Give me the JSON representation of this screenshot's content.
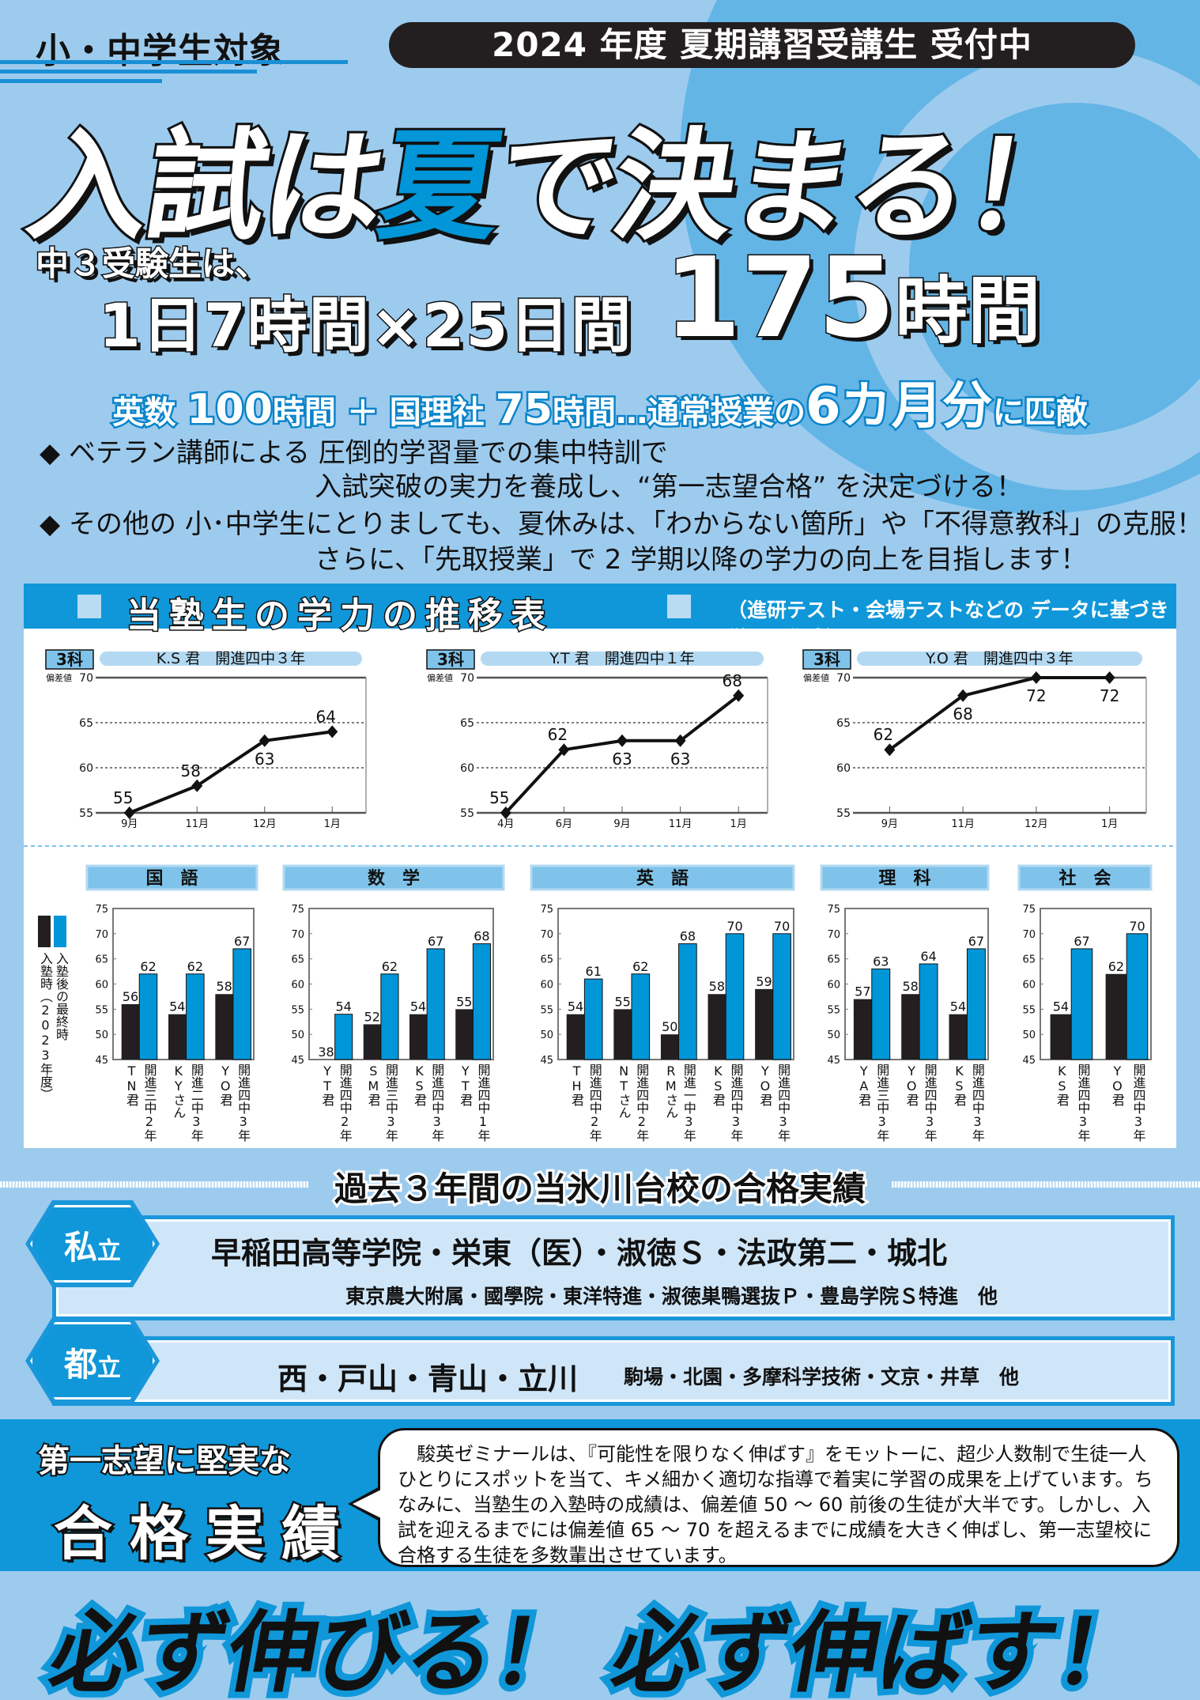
{
  "header": {
    "target": "小・中学生対象",
    "banner": "2024 年度 夏期講習受講生 受付中"
  },
  "headline": {
    "part1": "入試は",
    "highlight": "夏",
    "part2": "で決まる！"
  },
  "hours": {
    "intro": "中３受験生は、",
    "formula": "1日7時間×25日間",
    "total_num": "175",
    "total_unit": "時間"
  },
  "breakdown": {
    "s1": "英数 ",
    "n1": "100",
    "s2": "時間 ＋ 国理社 ",
    "n2": "75",
    "s3": "時間…通常授業の",
    "n3": "6カ月分",
    "s4": "に匹敵"
  },
  "bullets": [
    {
      "mark": "◆",
      "line1": "ベテラン講師による 圧倒的学習量での集中特訓で",
      "line2": "入試突破の実力を養成し、“第一志望合格” を決定づける！"
    },
    {
      "mark": "◆",
      "line1": "その他の 小･中学生にとりましても、夏休みは、「わからない箇所」や「不得意教科」の克服！",
      "line2": "さらに、「先取授業」で 2 学期以降の学力の向上を目指します！"
    }
  ],
  "progress": {
    "title": "当塾生の学力の推移表",
    "note": "（進研テスト・会場テストなどの データに基づき厳正に作成）"
  },
  "colors": {
    "bg": "#9dcbee",
    "accent": "#0f97d9",
    "before_bar": "#231f20",
    "after_bar": "#0096d8"
  },
  "chart_data": [
    {
      "type": "line",
      "tag": "3科",
      "title": "K.S 君　開進四中３年",
      "ylabel": "偏差値",
      "ylim": [
        55,
        70
      ],
      "yticks": [
        55,
        60,
        65,
        70
      ],
      "x": [
        "9月",
        "11月",
        "12月",
        "1月"
      ],
      "values": [
        55,
        58,
        63,
        64
      ]
    },
    {
      "type": "line",
      "tag": "3科",
      "title": "Y.T 君　開進四中１年",
      "ylabel": "偏差値",
      "ylim": [
        55,
        70
      ],
      "yticks": [
        55,
        60,
        65,
        70
      ],
      "x": [
        "4月",
        "6月",
        "9月",
        "11月",
        "1月"
      ],
      "values": [
        55,
        62,
        63,
        63,
        68
      ]
    },
    {
      "type": "line",
      "tag": "3科",
      "title": "Y.O 君　開進四中３年",
      "ylabel": "偏差値",
      "ylim": [
        55,
        70
      ],
      "yticks": [
        55,
        60,
        65,
        70
      ],
      "x": [
        "9月",
        "11月",
        "12月",
        "1月"
      ],
      "values": [
        62,
        68,
        72,
        72
      ]
    },
    {
      "type": "bar",
      "legend": [
        "入塾時（2023年度）",
        "入塾後の最終時"
      ],
      "ylim": [
        45,
        75
      ],
      "yticks": [
        45,
        50,
        55,
        60,
        65,
        70,
        75
      ],
      "subjects": [
        {
          "title": "国　語",
          "students": [
            "TN君",
            "KYさん",
            "YO君"
          ],
          "schools": [
            "開進三中2年",
            "開進二中3年",
            "開進四中3年"
          ],
          "before": [
            56,
            54,
            58
          ],
          "after": [
            62,
            62,
            67
          ]
        },
        {
          "title": "数　学",
          "students": [
            "YT君",
            "SM君",
            "KS君",
            "YT君"
          ],
          "schools": [
            "開進四中2年",
            "開進三中3年",
            "開進四中3年",
            "開進四中1年"
          ],
          "before": [
            38,
            52,
            54,
            55
          ],
          "after": [
            54,
            62,
            67,
            68
          ]
        },
        {
          "title": "英　語",
          "students": [
            "TH君",
            "NTさん",
            "RMさん",
            "KS君",
            "YO君"
          ],
          "schools": [
            "開進四中2年",
            "開進四中2年",
            "開進一中3年",
            "開進四中3年",
            "開進四中3年"
          ],
          "before": [
            54,
            55,
            50,
            58,
            59
          ],
          "after": [
            61,
            62,
            68,
            70,
            70
          ]
        },
        {
          "title": "理　科",
          "students": [
            "YA君",
            "YO君",
            "KS君"
          ],
          "schools": [
            "開進三中3年",
            "開進四中3年",
            "開進四中3年"
          ],
          "before": [
            57,
            58,
            54
          ],
          "after": [
            63,
            64,
            67
          ]
        },
        {
          "title": "社　会",
          "students": [
            "KS君",
            "YO君"
          ],
          "schools": [
            "開進四中3年",
            "開進四中3年"
          ],
          "before": [
            54,
            62
          ],
          "after": [
            67,
            70
          ]
        }
      ]
    }
  ],
  "results": {
    "title": "過去３年間の当氷川台校の合格実績",
    "private": {
      "badge": "私",
      "badge_small": "立",
      "main": "早稲田高等学院・栄東（医）・淑徳Ｓ・法政第二・城北",
      "sub": "東京農大附属・國學院・東洋特進・淑徳巣鴨選抜Ｐ・豊島学院Ｓ特進　他"
    },
    "public": {
      "badge": "都",
      "badge_small": "立",
      "main": "西・戸山・青山・立川",
      "sub": "駒場・北園・多摩科学技術・文京・井草　他"
    }
  },
  "promo": {
    "line1": "第一志望に堅実な",
    "line2": "合格実績",
    "body": "駿英ゼミナールは、『可能性を限りなく伸ばす』をモットーに、超少人数制で生徒一人ひとりにスポットを当て、キメ細かく適切な指導で着実に学習の成果を上げています。ちなみに、当塾生の入塾時の成績は、偏差値 50 ～ 60 前後の生徒が大半です。しかし、入試を迎えるまでには偏差値 65 ～ 70 を超えるまでに成績を大きく伸ばし、第一志望校に合格する生徒を多数輩出させています。"
  },
  "slogan": "必ず伸びる！ 必ず伸ばす！"
}
